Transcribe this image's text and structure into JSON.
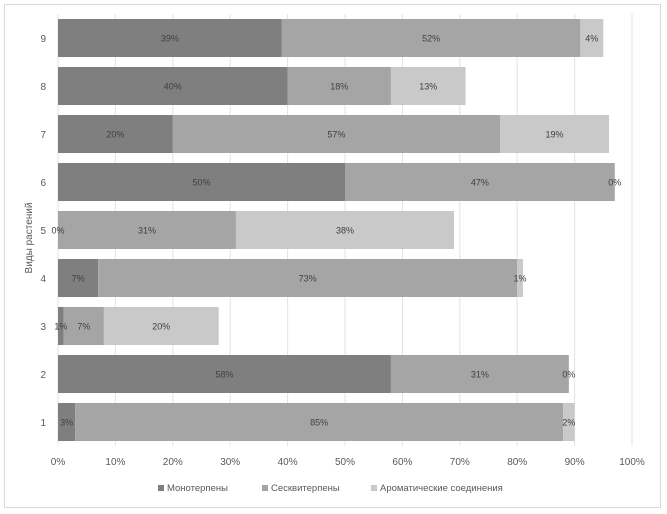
{
  "chart_data": {
    "type": "bar",
    "orientation": "horizontal",
    "stacked": true,
    "categories": [
      "1",
      "2",
      "3",
      "4",
      "5",
      "6",
      "7",
      "8",
      "9"
    ],
    "series": [
      {
        "name": "Монотерпены",
        "color": "#7f7f7f",
        "values": [
          3,
          58,
          1,
          7,
          0,
          50,
          20,
          40,
          39
        ]
      },
      {
        "name": "Сесквитерпены",
        "color": "#a5a5a5",
        "values": [
          85,
          31,
          7,
          73,
          31,
          47,
          57,
          18,
          52
        ]
      },
      {
        "name": "Ароматические соединения",
        "color": "#c9c9c9",
        "values": [
          2,
          0,
          20,
          1,
          38,
          0,
          19,
          13,
          4
        ]
      }
    ],
    "data_labels": [
      [
        "3%",
        "58%",
        "1%",
        "7%",
        "0%",
        "50%",
        "20%",
        "40%",
        "39%"
      ],
      [
        "85%",
        "31%",
        "7%",
        "73%",
        "31%",
        "47%",
        "57%",
        "18%",
        "52%"
      ],
      [
        "2%",
        "0%",
        "20%",
        "1%",
        "38%",
        "0%",
        "19%",
        "13%",
        "4%"
      ]
    ],
    "ylabel": "Виды растений",
    "xlabel": "",
    "xlim": [
      0,
      100
    ],
    "x_ticks": [
      "0%",
      "10%",
      "20%",
      "30%",
      "40%",
      "50%",
      "60%",
      "70%",
      "80%",
      "90%",
      "100%"
    ],
    "grid": true,
    "legend_position": "bottom"
  }
}
